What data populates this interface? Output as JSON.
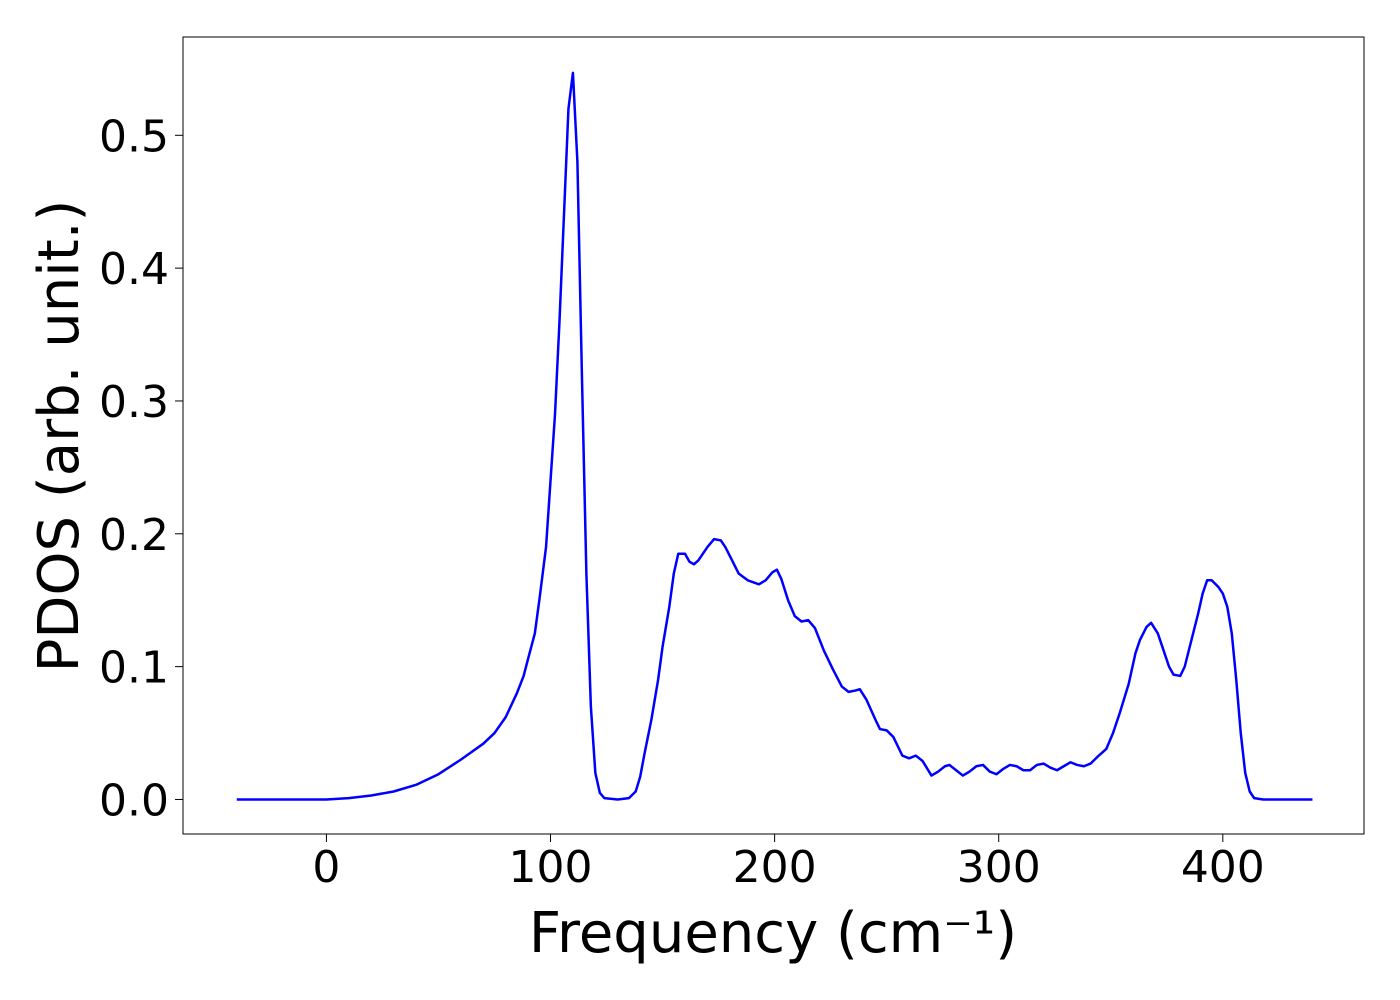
{
  "chart_data": {
    "type": "line",
    "xlabel": "Frequency (cm⁻¹)",
    "ylabel": "PDOS (arb. unit.)",
    "xlim": [
      -64,
      463
    ],
    "ylim": [
      -0.026,
      0.574
    ],
    "xticks": [
      0,
      100,
      200,
      300,
      400
    ],
    "yticks": [
      {
        "value": 0,
        "label": "0.0"
      },
      0.1,
      0.2,
      0.3,
      0.4,
      0.5
    ],
    "series": [
      {
        "color": "#0000ff",
        "x": [
          -40,
          0,
          10,
          20,
          30,
          40,
          50,
          60,
          70,
          75,
          80,
          85,
          88,
          90,
          93,
          95,
          98,
          100,
          102,
          104,
          106,
          108,
          110,
          112,
          114,
          116,
          118,
          120,
          122,
          124,
          130,
          135,
          138,
          140,
          142,
          145,
          148,
          150,
          153,
          155,
          157,
          160,
          162,
          164,
          166,
          170,
          173,
          176,
          178,
          181,
          184,
          188,
          193,
          196,
          199,
          201,
          203,
          206,
          209,
          212,
          215,
          218,
          222,
          226,
          230,
          233,
          236,
          238,
          241,
          245,
          247,
          250,
          253,
          257,
          260,
          263,
          266,
          270,
          273,
          276,
          278,
          281,
          284,
          287,
          290,
          293,
          296,
          299,
          302,
          305,
          308,
          311,
          314,
          317,
          320,
          323,
          326,
          329,
          332,
          335,
          338,
          341,
          344,
          348,
          351,
          354,
          358,
          361,
          363,
          366,
          368,
          371,
          373,
          376,
          378,
          381,
          383,
          386,
          389,
          391,
          393,
          395,
          398,
          400,
          402,
          404,
          406,
          408,
          410,
          412,
          414,
          418,
          440
        ],
        "values": [
          0,
          0,
          0.001,
          0.003,
          0.006,
          0.011,
          0.019,
          0.03,
          0.042,
          0.05,
          0.062,
          0.08,
          0.093,
          0.106,
          0.125,
          0.15,
          0.19,
          0.24,
          0.29,
          0.36,
          0.44,
          0.52,
          0.547,
          0.48,
          0.32,
          0.17,
          0.07,
          0.02,
          0.005,
          0.001,
          0,
          0.001,
          0.006,
          0.017,
          0.035,
          0.06,
          0.09,
          0.115,
          0.145,
          0.17,
          0.185,
          0.185,
          0.179,
          0.177,
          0.18,
          0.19,
          0.196,
          0.195,
          0.19,
          0.18,
          0.17,
          0.165,
          0.162,
          0.165,
          0.171,
          0.173,
          0.166,
          0.15,
          0.138,
          0.134,
          0.135,
          0.129,
          0.112,
          0.098,
          0.085,
          0.081,
          0.082,
          0.083,
          0.075,
          0.06,
          0.053,
          0.052,
          0.047,
          0.033,
          0.031,
          0.033,
          0.029,
          0.018,
          0.021,
          0.025,
          0.026,
          0.022,
          0.018,
          0.021,
          0.025,
          0.026,
          0.021,
          0.019,
          0.023,
          0.026,
          0.025,
          0.022,
          0.022,
          0.026,
          0.027,
          0.024,
          0.022,
          0.025,
          0.028,
          0.026,
          0.025,
          0.027,
          0.032,
          0.038,
          0.05,
          0.065,
          0.087,
          0.11,
          0.12,
          0.13,
          0.133,
          0.125,
          0.115,
          0.1,
          0.094,
          0.093,
          0.1,
          0.12,
          0.14,
          0.155,
          0.165,
          0.165,
          0.16,
          0.155,
          0.145,
          0.125,
          0.09,
          0.05,
          0.02,
          0.006,
          0.001,
          0,
          0
        ]
      }
    ]
  }
}
